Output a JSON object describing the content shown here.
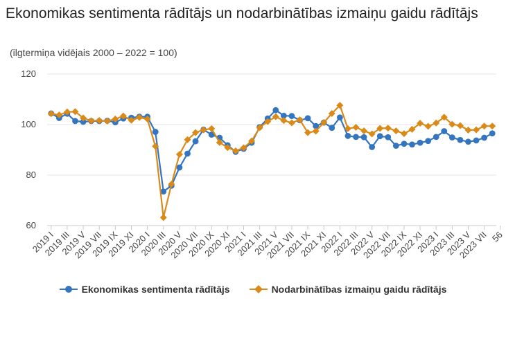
{
  "title": "Ekonomikas sentimenta rādītājs un nodarbinātības izmaiņu gaidu rādītājs",
  "subtitle": "(ilgtermiņa vidējais 2000 – 2022 = 100)",
  "colors": {
    "series1": "#3475c0",
    "series2": "#d98a18",
    "grid": "#e3e3e3",
    "axis": "#c8c8c8"
  },
  "chart_data": {
    "type": "line",
    "ylim": [
      60,
      120
    ],
    "yticks": [
      60,
      80,
      100,
      120
    ],
    "grid": true,
    "legend_position": "bottom",
    "x_tick_labels": [
      "2019 I",
      "2019 III",
      "2019 V",
      "2019 VII",
      "2019 IX",
      "2019 XI",
      "2020 I",
      "2020 III",
      "2020 V",
      "2020 VII",
      "2020 IX",
      "2020 XI",
      "2021 I",
      "2021 III",
      "2021 V",
      "2021 VII",
      "2021 IX",
      "2021 XI",
      "2022 I",
      "2022 III",
      "2022 V",
      "2022 VII",
      "2022 IX",
      "2022 XI",
      "2023 I",
      "2023 III",
      "2023 V",
      "2023 VII",
      "56"
    ],
    "series": [
      {
        "name": "Ekonomikas sentimenta rādītājs",
        "values": [
          104.4,
          102.6,
          104.3,
          101.4,
          101.1,
          101.4,
          101.4,
          101.5,
          100.9,
          102.4,
          102.7,
          103.1,
          103.1,
          97.1,
          73.5,
          75.8,
          83.0,
          88.5,
          93.4,
          98.0,
          96.0,
          94.8,
          91.8,
          89.2,
          90.4,
          92.8,
          99.0,
          102.4,
          105.7,
          103.5,
          103.4,
          101.7,
          102.5,
          99.4,
          100.8,
          98.7,
          102.8,
          95.5,
          95.1,
          95.0,
          91.1,
          95.4,
          95.0,
          91.6,
          92.4,
          92.1,
          92.8,
          93.5,
          95.1,
          97.4,
          94.9,
          93.9,
          93.2,
          93.7,
          94.8,
          96.5
        ]
      },
      {
        "name": "Nodarbinātības izmaiņu gaidu rādītājs",
        "values": [
          104.3,
          103.8,
          105.0,
          105.1,
          102.6,
          101.5,
          101.6,
          101.4,
          102.2,
          103.4,
          101.7,
          102.8,
          102.2,
          91.4,
          63.2,
          76.4,
          88.2,
          94.0,
          96.8,
          97.9,
          98.4,
          92.9,
          90.9,
          89.6,
          90.8,
          93.5,
          98.8,
          101.2,
          103.1,
          101.6,
          100.7,
          101.9,
          96.8,
          97.4,
          100.8,
          104.4,
          107.6,
          98.4,
          98.9,
          97.5,
          96.3,
          98.5,
          98.6,
          97.5,
          96.4,
          98.1,
          100.5,
          99.3,
          100.6,
          102.9,
          100.1,
          99.6,
          97.8,
          97.9,
          99.4,
          99.4
        ]
      }
    ]
  }
}
